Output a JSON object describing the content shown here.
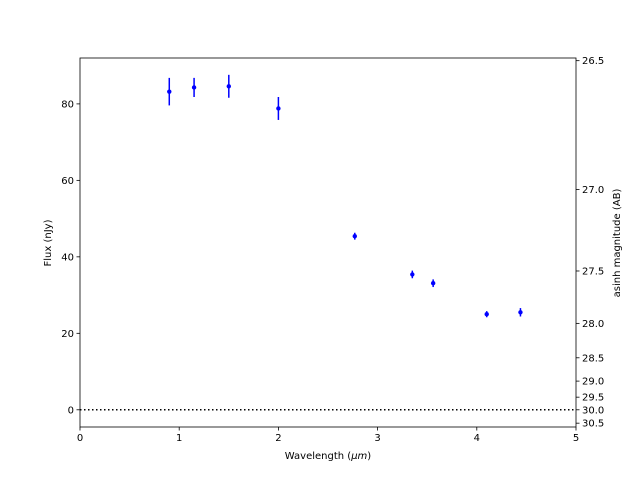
{
  "chart_data": {
    "type": "scatter",
    "xlabel_prefix": "Wavelength (",
    "xlabel_unit": "μm",
    "xlabel_suffix": ")",
    "ylabel": "Flux (nJy)",
    "ylabel_right": "asinh magnitude (AB)",
    "xlim": [
      0,
      5
    ],
    "ylim": [
      -4.5,
      92
    ],
    "xticks": [
      0,
      1,
      2,
      3,
      4,
      5
    ],
    "yticks": [
      0,
      20,
      40,
      60,
      80
    ],
    "right_ticks": [
      {
        "label": "26.5",
        "flux": 91.3
      },
      {
        "label": "27.0",
        "flux": 57.6
      },
      {
        "label": "27.5",
        "flux": 36.3
      },
      {
        "label": "28.0",
        "flux": 22.6
      },
      {
        "label": "28.5",
        "flux": 13.6
      },
      {
        "label": "29.0",
        "flux": 7.5
      },
      {
        "label": "29.5",
        "flux": 3.3
      },
      {
        "label": "30.0",
        "flux": 0.0
      },
      {
        "label": "30.5",
        "flux": -3.5
      }
    ],
    "zero_line": {
      "y": 0,
      "style": "dotted",
      "color": "#000000"
    },
    "grid": false,
    "series": [
      {
        "color": "#0000ff",
        "points": [
          {
            "x": 0.9,
            "y": 83.2,
            "yerr": 3.6
          },
          {
            "x": 1.15,
            "y": 84.3,
            "yerr": 2.5
          },
          {
            "x": 1.5,
            "y": 84.6,
            "yerr": 3.0
          },
          {
            "x": 2.0,
            "y": 78.8,
            "yerr": 3.0
          },
          {
            "x": 2.77,
            "y": 45.4,
            "yerr": 0.9
          },
          {
            "x": 3.35,
            "y": 35.4,
            "yerr": 1.0
          },
          {
            "x": 3.56,
            "y": 33.1,
            "yerr": 1.0
          },
          {
            "x": 4.1,
            "y": 25.0,
            "yerr": 0.8
          },
          {
            "x": 4.44,
            "y": 25.5,
            "yerr": 1.1
          }
        ]
      }
    ]
  }
}
